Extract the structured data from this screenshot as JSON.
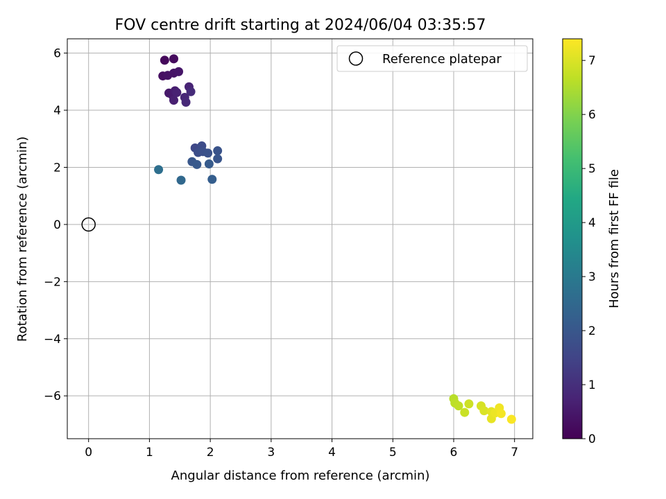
{
  "chart_data": {
    "type": "scatter",
    "title": "FOV centre drift starting at 2024/06/04 03:35:57",
    "xlabel": "Angular distance from reference (arcmin)",
    "ylabel": "Rotation from reference (arcmin)",
    "xlim": [
      -0.35,
      7.3
    ],
    "ylim": [
      -7.5,
      6.5
    ],
    "xticks": [
      0,
      1,
      2,
      3,
      4,
      5,
      6,
      7
    ],
    "xtick_labels": [
      "0",
      "1",
      "2",
      "3",
      "4",
      "5",
      "6",
      "7"
    ],
    "yticks": [
      -6,
      -4,
      -2,
      0,
      2,
      4,
      6
    ],
    "ytick_labels": [
      "−6",
      "−4",
      "−2",
      "0",
      "2",
      "4",
      "6"
    ],
    "grid": true,
    "legend": {
      "placement": "top-right",
      "entries": [
        "Reference platepar"
      ]
    },
    "reference_point": {
      "x": 0,
      "y": 0
    },
    "colorbar": {
      "label": "Hours from first FF file",
      "range": [
        0,
        7.4
      ],
      "ticks": [
        0,
        1,
        2,
        3,
        4,
        5,
        6,
        7
      ],
      "tick_labels": [
        "0",
        "1",
        "2",
        "3",
        "4",
        "5",
        "6",
        "7"
      ],
      "colormap": "viridis"
    },
    "points": [
      {
        "x": 1.25,
        "y": 5.75,
        "t": 0.15
      },
      {
        "x": 1.4,
        "y": 5.8,
        "t": 0.2
      },
      {
        "x": 1.22,
        "y": 5.2,
        "t": 0.3
      },
      {
        "x": 1.3,
        "y": 5.22,
        "t": 0.35
      },
      {
        "x": 1.4,
        "y": 5.3,
        "t": 0.4
      },
      {
        "x": 1.48,
        "y": 5.35,
        "t": 0.45
      },
      {
        "x": 1.32,
        "y": 4.6,
        "t": 0.5
      },
      {
        "x": 1.38,
        "y": 4.52,
        "t": 0.55
      },
      {
        "x": 1.42,
        "y": 4.68,
        "t": 0.6
      },
      {
        "x": 1.4,
        "y": 4.35,
        "t": 0.65
      },
      {
        "x": 1.45,
        "y": 4.62,
        "t": 0.7
      },
      {
        "x": 1.58,
        "y": 4.45,
        "t": 0.8
      },
      {
        "x": 1.6,
        "y": 4.28,
        "t": 0.85
      },
      {
        "x": 1.65,
        "y": 4.82,
        "t": 0.75
      },
      {
        "x": 1.68,
        "y": 4.65,
        "t": 0.9
      },
      {
        "x": 1.75,
        "y": 2.68,
        "t": 1.6
      },
      {
        "x": 1.82,
        "y": 2.62,
        "t": 1.65
      },
      {
        "x": 1.86,
        "y": 2.75,
        "t": 1.7
      },
      {
        "x": 1.8,
        "y": 2.52,
        "t": 1.75
      },
      {
        "x": 1.88,
        "y": 2.55,
        "t": 1.8
      },
      {
        "x": 1.96,
        "y": 2.5,
        "t": 1.85
      },
      {
        "x": 2.12,
        "y": 2.58,
        "t": 1.9
      },
      {
        "x": 2.12,
        "y": 2.3,
        "t": 1.95
      },
      {
        "x": 1.7,
        "y": 2.2,
        "t": 2.0
      },
      {
        "x": 1.78,
        "y": 2.1,
        "t": 2.05
      },
      {
        "x": 1.98,
        "y": 2.12,
        "t": 2.1
      },
      {
        "x": 2.03,
        "y": 1.58,
        "t": 2.2
      },
      {
        "x": 1.52,
        "y": 1.55,
        "t": 2.5
      },
      {
        "x": 1.15,
        "y": 1.92,
        "t": 2.7
      },
      {
        "x": 6.0,
        "y": -6.1,
        "t": 6.6
      },
      {
        "x": 6.02,
        "y": -6.25,
        "t": 6.65
      },
      {
        "x": 6.08,
        "y": -6.35,
        "t": 6.7
      },
      {
        "x": 6.18,
        "y": -6.58,
        "t": 6.8
      },
      {
        "x": 6.25,
        "y": -6.28,
        "t": 6.85
      },
      {
        "x": 6.45,
        "y": -6.35,
        "t": 6.95
      },
      {
        "x": 6.5,
        "y": -6.52,
        "t": 7.0
      },
      {
        "x": 6.62,
        "y": -6.55,
        "t": 7.1
      },
      {
        "x": 6.62,
        "y": -6.8,
        "t": 7.15
      },
      {
        "x": 6.68,
        "y": -6.6,
        "t": 7.2
      },
      {
        "x": 6.75,
        "y": -6.42,
        "t": 7.25
      },
      {
        "x": 6.78,
        "y": -6.62,
        "t": 7.3
      },
      {
        "x": 6.95,
        "y": -6.82,
        "t": 7.35
      }
    ]
  }
}
